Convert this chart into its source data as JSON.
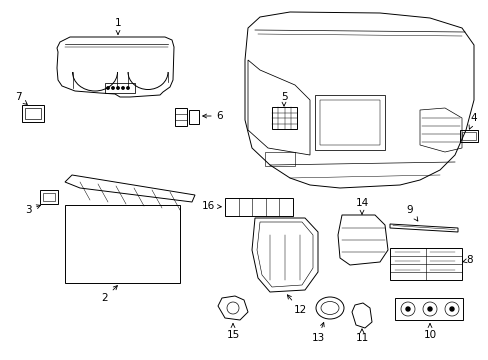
{
  "background_color": "#ffffff",
  "line_color": "#000000",
  "text_color": "#000000",
  "fig_width": 4.89,
  "fig_height": 3.6,
  "dpi": 100,
  "label_fontsize": 7.5
}
